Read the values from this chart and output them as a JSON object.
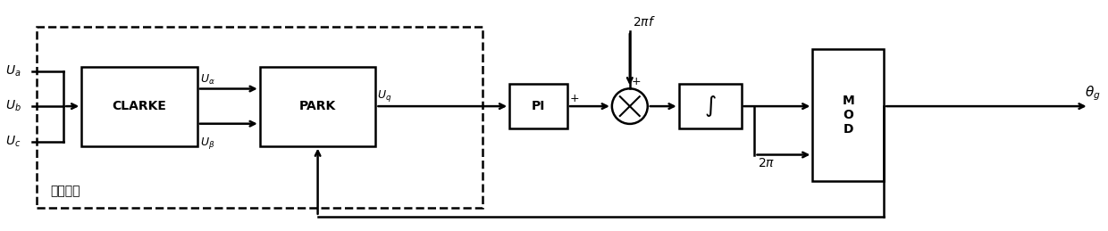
{
  "fig_width": 12.4,
  "fig_height": 2.59,
  "dpi": 100,
  "bg_color": "#ffffff",
  "line_color": "#000000",
  "box_color": "#ffffff",
  "line_width": 1.8,
  "arrow_lw": 1.8,
  "inputs": [
    "$U_a$",
    "$U_b$",
    "$U_c$"
  ],
  "clarke_label": "CLARKE",
  "park_label": "PARK",
  "pi_label": "PI",
  "int_label": "$\\int$",
  "mod_label": "M\nO\nD",
  "coord_label": "坐标变抟",
  "uq_label": "$U_q$",
  "ualpha_label": "$U_\\alpha$",
  "ubeta_label": "$U_\\beta$",
  "twopif_label": "$2\\pi f$",
  "twopi_label": "$2\\pi$",
  "theta_label": "$\\theta_g$"
}
